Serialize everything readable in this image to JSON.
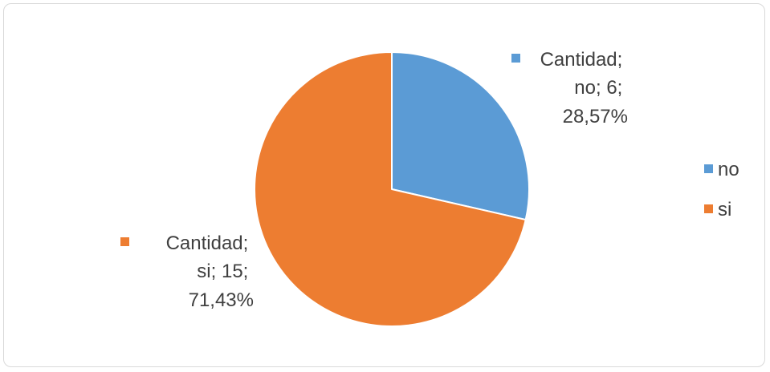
{
  "chart_data": {
    "type": "pie",
    "title": "",
    "series_name": "Cantidad",
    "categories": [
      "no",
      "si"
    ],
    "values": [
      6,
      15
    ],
    "percentages": [
      "28,57%",
      "71,43%"
    ],
    "colors": [
      "#5b9bd5",
      "#ed7d31"
    ],
    "data_labels": [
      {
        "lines": [
          "Cantidad;",
          "no; 6;",
          "28,57%"
        ],
        "color": "#5b9bd5"
      },
      {
        "lines": [
          "Cantidad;",
          "si; 15;",
          "71,43%"
        ],
        "color": "#ed7d31"
      }
    ],
    "legend": {
      "position": "right",
      "entries": [
        {
          "label": "no",
          "color": "#5b9bd5"
        },
        {
          "label": "si",
          "color": "#ed7d31"
        }
      ]
    }
  }
}
